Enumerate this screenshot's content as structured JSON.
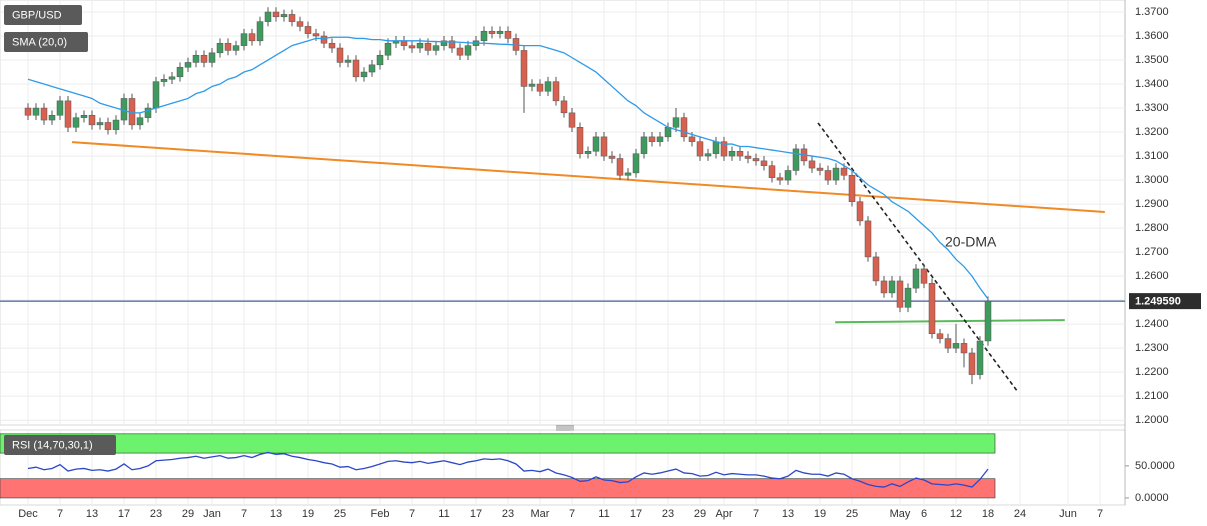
{
  "chart_data": [
    {
      "type": "candlestick",
      "title": "GBP/USD",
      "indicator_label": "SMA (20,0)",
      "annotation": "20-DMA",
      "xlim": [
        -3.5,
        137.125
      ],
      "xticks": [
        {
          "value": 0,
          "label": "Dec"
        },
        {
          "value": 4,
          "label": "7"
        },
        {
          "value": 8,
          "label": "13"
        },
        {
          "value": 12,
          "label": "17"
        },
        {
          "value": 16,
          "label": "23"
        },
        {
          "value": 20,
          "label": "29"
        },
        {
          "value": 23,
          "label": "Jan"
        },
        {
          "value": 27,
          "label": "7"
        },
        {
          "value": 31,
          "label": "13"
        },
        {
          "value": 35,
          "label": "19"
        },
        {
          "value": 39,
          "label": "25"
        },
        {
          "value": 44,
          "label": "Feb"
        },
        {
          "value": 48,
          "label": "7"
        },
        {
          "value": 52,
          "label": "11"
        },
        {
          "value": 56,
          "label": "17"
        },
        {
          "value": 60,
          "label": "23"
        },
        {
          "value": 64,
          "label": "Mar"
        },
        {
          "value": 68,
          "label": "7"
        },
        {
          "value": 72,
          "label": "11"
        },
        {
          "value": 76,
          "label": "17"
        },
        {
          "value": 80,
          "label": "23"
        },
        {
          "value": 84,
          "label": "29"
        },
        {
          "value": 87,
          "label": "Apr"
        },
        {
          "value": 91,
          "label": "7"
        },
        {
          "value": 95,
          "label": "13"
        },
        {
          "value": 99,
          "label": "19"
        },
        {
          "value": 103,
          "label": "25"
        },
        {
          "value": 109,
          "label": "May"
        },
        {
          "value": 112,
          "label": "6"
        },
        {
          "value": 116,
          "label": "12"
        },
        {
          "value": 120,
          "label": "18"
        },
        {
          "value": 124,
          "label": "24"
        },
        {
          "value": 130,
          "label": "Jun"
        },
        {
          "value": 134,
          "label": "7"
        }
      ],
      "ylim": [
        1.198,
        1.375
      ],
      "yticks": [
        {
          "value": 1.37,
          "label": "1.3700"
        },
        {
          "value": 1.36,
          "label": "1.3600"
        },
        {
          "value": 1.35,
          "label": "1.3500"
        },
        {
          "value": 1.34,
          "label": "1.3400"
        },
        {
          "value": 1.33,
          "label": "1.3300"
        },
        {
          "value": 1.32,
          "label": "1.3200"
        },
        {
          "value": 1.31,
          "label": "1.3100"
        },
        {
          "value": 1.3,
          "label": "1.3000"
        },
        {
          "value": 1.29,
          "label": "1.2900"
        },
        {
          "value": 1.28,
          "label": "1.2800"
        },
        {
          "value": 1.27,
          "label": "1.2700"
        },
        {
          "value": 1.26,
          "label": "1.2600"
        },
        {
          "value": 1.25,
          "label": "1.2500"
        },
        {
          "value": 1.24,
          "label": "1.2400"
        },
        {
          "value": 1.23,
          "label": "1.2300"
        },
        {
          "value": 1.22,
          "label": "1.2200"
        },
        {
          "value": 1.21,
          "label": "1.2100"
        },
        {
          "value": 1.2,
          "label": "1.2000"
        }
      ],
      "grid": true,
      "up_color": "#3e9a5f",
      "down_color": "#d8604f",
      "last_price": {
        "value": 1.24959,
        "label": "1.249590"
      },
      "last_price_color": "#1e3a8a",
      "open": [
        1.33,
        1.327,
        1.33,
        1.325,
        1.327,
        1.333,
        1.322,
        1.326,
        1.327,
        1.323,
        1.324,
        1.321,
        1.325,
        1.334,
        1.323,
        1.326,
        1.33,
        1.341,
        1.342,
        1.343,
        1.347,
        1.349,
        1.352,
        1.349,
        1.353,
        1.357,
        1.354,
        1.356,
        1.361,
        1.358,
        1.366,
        1.37,
        1.368,
        1.369,
        1.366,
        1.364,
        1.361,
        1.36,
        1.357,
        1.355,
        1.349,
        1.35,
        1.343,
        1.345,
        1.348,
        1.352,
        1.357,
        1.358,
        1.356,
        1.355,
        1.357,
        1.354,
        1.356,
        1.358,
        1.355,
        1.352,
        1.356,
        1.358,
        1.362,
        1.361,
        1.362,
        1.359,
        1.354,
        1.339,
        1.34,
        1.337,
        1.341,
        1.333,
        1.328,
        1.322,
        1.311,
        1.312,
        1.318,
        1.31,
        1.309,
        1.302,
        1.303,
        1.311,
        1.318,
        1.316,
        1.318,
        1.322,
        1.326,
        1.318,
        1.316,
        1.31,
        1.311,
        1.316,
        1.31,
        1.312,
        1.31,
        1.309,
        1.308,
        1.306,
        1.301,
        1.3,
        1.304,
        1.313,
        1.308,
        1.305,
        1.304,
        1.3,
        1.305,
        1.302,
        1.291,
        1.283,
        1.268,
        1.258,
        1.253,
        1.258,
        1.247,
        1.255,
        1.263,
        1.257,
        1.236,
        1.234,
        1.23,
        1.232,
        1.228,
        1.219,
        1.233
      ],
      "high": [
        1.332,
        1.332,
        1.332,
        1.329,
        1.335,
        1.335,
        1.328,
        1.329,
        1.329,
        1.326,
        1.326,
        1.327,
        1.336,
        1.336,
        1.328,
        1.332,
        1.343,
        1.344,
        1.345,
        1.349,
        1.351,
        1.354,
        1.354,
        1.355,
        1.359,
        1.359,
        1.358,
        1.363,
        1.363,
        1.368,
        1.372,
        1.372,
        1.371,
        1.371,
        1.368,
        1.366,
        1.363,
        1.362,
        1.359,
        1.357,
        1.352,
        1.352,
        1.347,
        1.35,
        1.354,
        1.359,
        1.36,
        1.36,
        1.358,
        1.359,
        1.359,
        1.358,
        1.36,
        1.36,
        1.357,
        1.358,
        1.36,
        1.364,
        1.364,
        1.364,
        1.364,
        1.361,
        1.356,
        1.342,
        1.342,
        1.343,
        1.343,
        1.335,
        1.33,
        1.324,
        1.314,
        1.32,
        1.32,
        1.312,
        1.311,
        1.305,
        1.313,
        1.32,
        1.32,
        1.32,
        1.324,
        1.33,
        1.328,
        1.32,
        1.318,
        1.313,
        1.318,
        1.318,
        1.314,
        1.314,
        1.312,
        1.311,
        1.31,
        1.308,
        1.303,
        1.306,
        1.315,
        1.315,
        1.31,
        1.307,
        1.306,
        1.307,
        1.307,
        1.304,
        1.293,
        1.285,
        1.27,
        1.26,
        1.26,
        1.26,
        1.257,
        1.265,
        1.265,
        1.259,
        1.238,
        1.236,
        1.24,
        1.234,
        1.23,
        1.235,
        1.2515
      ],
      "low": [
        1.325,
        1.325,
        1.323,
        1.323,
        1.325,
        1.32,
        1.32,
        1.324,
        1.321,
        1.321,
        1.319,
        1.319,
        1.323,
        1.321,
        1.321,
        1.324,
        1.328,
        1.339,
        1.34,
        1.341,
        1.345,
        1.347,
        1.347,
        1.347,
        1.351,
        1.352,
        1.352,
        1.354,
        1.356,
        1.356,
        1.364,
        1.366,
        1.366,
        1.364,
        1.362,
        1.359,
        1.358,
        1.355,
        1.353,
        1.347,
        1.347,
        1.341,
        1.341,
        1.343,
        1.346,
        1.35,
        1.355,
        1.354,
        1.353,
        1.353,
        1.352,
        1.352,
        1.354,
        1.353,
        1.35,
        1.35,
        1.354,
        1.356,
        1.359,
        1.359,
        1.357,
        1.352,
        1.328,
        1.337,
        1.335,
        1.335,
        1.331,
        1.326,
        1.32,
        1.309,
        1.309,
        1.31,
        1.308,
        1.307,
        1.3,
        1.3,
        1.301,
        1.309,
        1.314,
        1.314,
        1.316,
        1.32,
        1.316,
        1.314,
        1.308,
        1.308,
        1.309,
        1.308,
        1.308,
        1.308,
        1.307,
        1.306,
        1.304,
        1.299,
        1.298,
        1.298,
        1.302,
        1.306,
        1.303,
        1.302,
        1.298,
        1.298,
        1.3,
        1.289,
        1.281,
        1.266,
        1.256,
        1.251,
        1.251,
        1.245,
        1.245,
        1.253,
        1.255,
        1.234,
        1.232,
        1.228,
        1.228,
        1.222,
        1.215,
        1.217,
        1.231
      ],
      "close": [
        1.327,
        1.33,
        1.325,
        1.327,
        1.333,
        1.322,
        1.326,
        1.327,
        1.323,
        1.324,
        1.321,
        1.325,
        1.334,
        1.323,
        1.326,
        1.33,
        1.341,
        1.342,
        1.343,
        1.347,
        1.349,
        1.352,
        1.349,
        1.353,
        1.357,
        1.354,
        1.356,
        1.361,
        1.358,
        1.366,
        1.37,
        1.368,
        1.369,
        1.366,
        1.364,
        1.361,
        1.36,
        1.357,
        1.355,
        1.349,
        1.35,
        1.343,
        1.345,
        1.348,
        1.352,
        1.357,
        1.358,
        1.356,
        1.355,
        1.357,
        1.354,
        1.356,
        1.358,
        1.355,
        1.352,
        1.356,
        1.358,
        1.362,
        1.361,
        1.362,
        1.359,
        1.354,
        1.339,
        1.34,
        1.337,
        1.341,
        1.333,
        1.328,
        1.322,
        1.311,
        1.312,
        1.318,
        1.31,
        1.309,
        1.302,
        1.303,
        1.311,
        1.318,
        1.316,
        1.318,
        1.322,
        1.326,
        1.318,
        1.316,
        1.31,
        1.311,
        1.316,
        1.31,
        1.312,
        1.31,
        1.309,
        1.308,
        1.306,
        1.301,
        1.3,
        1.304,
        1.313,
        1.308,
        1.305,
        1.304,
        1.3,
        1.305,
        1.302,
        1.291,
        1.283,
        1.268,
        1.258,
        1.253,
        1.258,
        1.247,
        1.255,
        1.263,
        1.257,
        1.236,
        1.234,
        1.23,
        1.232,
        1.228,
        1.219,
        1.233,
        1.2496
      ],
      "series": [
        {
          "name": "SMA (20,0)",
          "color": "#2f9be8",
          "values": [
            1.342,
            1.341,
            1.34,
            1.339,
            1.338,
            1.337,
            1.336,
            1.335,
            1.334,
            1.332,
            1.331,
            1.33,
            1.329,
            1.328,
            1.328,
            1.329,
            1.33,
            1.331,
            1.332,
            1.333,
            1.334,
            1.336,
            1.337,
            1.339,
            1.34,
            1.342,
            1.343,
            1.345,
            1.346,
            1.348,
            1.35,
            1.352,
            1.354,
            1.356,
            1.357,
            1.358,
            1.359,
            1.359,
            1.3595,
            1.3595,
            1.3595,
            1.359,
            1.359,
            1.3585,
            1.3585,
            1.358,
            1.358,
            1.358,
            1.358,
            1.358,
            1.3578,
            1.3577,
            1.3576,
            1.3575,
            1.3574,
            1.3572,
            1.357,
            1.357,
            1.3568,
            1.3566,
            1.3565,
            1.3562,
            1.356,
            1.356,
            1.356,
            1.355,
            1.354,
            1.353,
            1.351,
            1.349,
            1.347,
            1.345,
            1.342,
            1.339,
            1.336,
            1.333,
            1.331,
            1.328,
            1.326,
            1.324,
            1.322,
            1.321,
            1.32,
            1.319,
            1.318,
            1.317,
            1.316,
            1.315,
            1.315,
            1.314,
            1.314,
            1.3135,
            1.313,
            1.3125,
            1.312,
            1.3115,
            1.311,
            1.3105,
            1.31,
            1.3095,
            1.309,
            1.308,
            1.306,
            1.304,
            1.301,
            1.298,
            1.296,
            1.294,
            1.291,
            1.289,
            1.287,
            1.284,
            1.281,
            1.278,
            1.274,
            1.271,
            1.267,
            1.264,
            1.26,
            1.255,
            1.2505
          ]
        }
      ],
      "trendlines": [
        {
          "color": "#f08a24",
          "dash": false,
          "x": [
            5.5,
            134.6
          ],
          "y": [
            1.3158,
            1.2867
          ]
        },
        {
          "color": "#5cb85c",
          "dash": false,
          "x": [
            100.9,
            129.6
          ],
          "y": [
            1.2408,
            1.2417
          ]
        },
        {
          "color": "#222222",
          "dash": true,
          "x": [
            98.75,
            123.75
          ],
          "y": [
            1.3238,
            1.2117
          ]
        }
      ]
    },
    {
      "type": "line",
      "ylim": [
        -11,
        106
      ],
      "yticks": [
        {
          "value": 50,
          "label": "50.0000"
        },
        {
          "value": 0,
          "label": "0.0000"
        }
      ],
      "bands": [
        {
          "from": 70,
          "to": 100,
          "color": "#6cf26c"
        },
        {
          "from": 0,
          "to": 30,
          "color": "#ff7373"
        }
      ],
      "series": [
        {
          "name": "RSI (14,70,30,1)",
          "color": "#2b47c9",
          "values": [
            46,
            48,
            44,
            46,
            52,
            42,
            45,
            46,
            43,
            44,
            42,
            45,
            53,
            44,
            46,
            50,
            58,
            59,
            60,
            62,
            63,
            65,
            62,
            64,
            66,
            62,
            63,
            66,
            63,
            68,
            71,
            68,
            69,
            65,
            63,
            60,
            58,
            55,
            53,
            48,
            49,
            44,
            46,
            49,
            53,
            57,
            58,
            56,
            55,
            57,
            54,
            56,
            58,
            55,
            52,
            56,
            58,
            61,
            60,
            61,
            58,
            53,
            42,
            43,
            41,
            45,
            39,
            36,
            32,
            26,
            27,
            33,
            28,
            27,
            24,
            25,
            33,
            39,
            37,
            39,
            42,
            45,
            39,
            38,
            34,
            35,
            40,
            36,
            38,
            37,
            36,
            36,
            34,
            31,
            30,
            34,
            43,
            39,
            37,
            37,
            34,
            39,
            37,
            30,
            26,
            21,
            18,
            17,
            22,
            18,
            25,
            31,
            28,
            22,
            21,
            20,
            22,
            20,
            17,
            29,
            45
          ]
        }
      ]
    }
  ]
}
